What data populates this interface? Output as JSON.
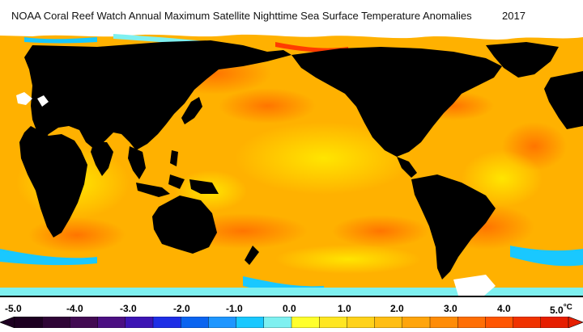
{
  "title": "NOAA Coral Reef Watch Annual Maximum Satellite Nighttime Sea Surface Temperature Anomalies",
  "year": "2017",
  "colorbar": {
    "labels": [
      "-5.0",
      "-4.0",
      "-3.0",
      "-2.0",
      "-1.0",
      "0.0",
      "1.0",
      "2.0",
      "3.0",
      "4.0",
      "5.0"
    ],
    "unit": "°C",
    "colors": [
      "#1d0021",
      "#2f0536",
      "#420a52",
      "#4b0f82",
      "#3c14b4",
      "#1e2ee6",
      "#0a64f0",
      "#1e96ff",
      "#19c8ff",
      "#7ef0f0",
      "#ffff2c",
      "#ffe621",
      "#ffd21a",
      "#ffbe13",
      "#ffa50c",
      "#ff8c07",
      "#ff6e05",
      "#ff5502",
      "#f03200",
      "#e61e00"
    ]
  },
  "colors": {
    "land": "#000000",
    "ocean": "#ffb100",
    "ice": "#ffffff"
  }
}
